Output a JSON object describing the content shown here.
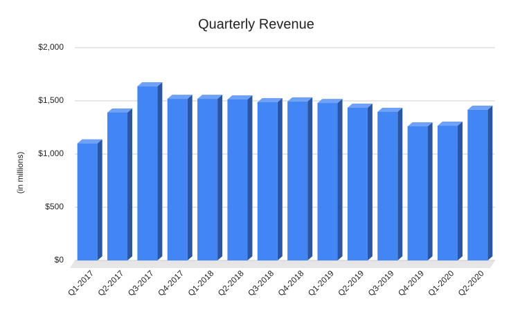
{
  "chart_data": {
    "type": "bar3d",
    "title": "Quarterly Revenue",
    "y_label": "(in millions)",
    "categories": [
      "Q1-2017",
      "Q2-2017",
      "Q3-2017",
      "Q4-2017",
      "Q1-2018",
      "Q2-2018",
      "Q3-2018",
      "Q4-2018",
      "Q1-2019",
      "Q2-2019",
      "Q3-2019",
      "Q4-2019",
      "Q1-2020",
      "Q2-2020"
    ],
    "values": [
      1100,
      1390,
      1636,
      1519,
      1519,
      1513,
      1487,
      1494,
      1480,
      1435,
      1396,
      1260,
      1266,
      1416
    ],
    "color": "#4285f4",
    "ylim": [
      0,
      2000
    ],
    "yticks": [
      {
        "value": 0,
        "label": "$0"
      },
      {
        "value": 500,
        "label": "$500"
      },
      {
        "value": 1000,
        "label": "$1,000"
      },
      {
        "value": 1500,
        "label": "$1,500"
      },
      {
        "value": 2000,
        "label": "$2,000"
      }
    ],
    "grid": true
  }
}
